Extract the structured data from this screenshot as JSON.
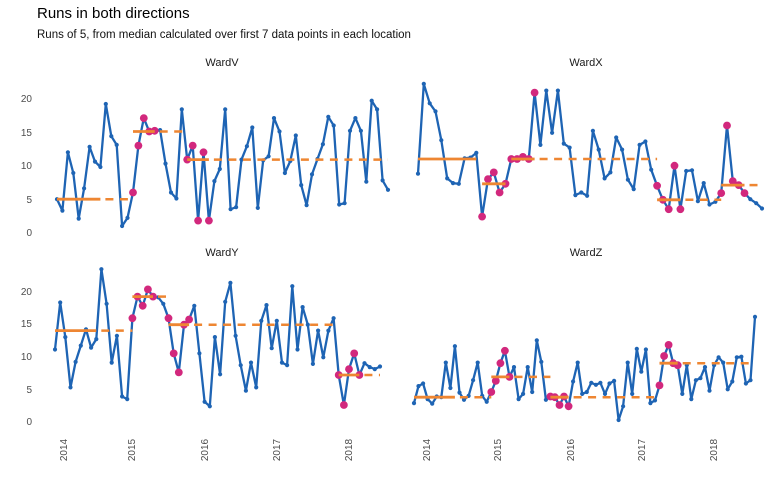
{
  "header": {
    "title": "Runs in both directions",
    "subtitle": "Runs of 5, from median calculated over first 7 data points in each location"
  },
  "colors": {
    "line": "#1e64b4",
    "point": "#1e64b4",
    "run_point": "#d2287d",
    "median_line": "#ee8632",
    "axis_text": "#4d4d4d",
    "strip_text": "#1a1a1a",
    "background": "#ffffff"
  },
  "chart_data": {
    "type": "line",
    "title": "Runs in both directions",
    "subtitle": "Runs of 5, from median calculated over first 7 data points in each location",
    "x_ticks": [
      "2014",
      "2015",
      "2016",
      "2017",
      "2018"
    ],
    "y_ticks": [
      0,
      5,
      10,
      15,
      20
    ],
    "ylim": [
      0,
      23.5
    ],
    "grid": false,
    "legend_position": "none",
    "facets": [
      {
        "name": "WardV",
        "values": [
          5.2,
          3.5,
          12.2,
          9.1,
          2.3,
          6.8,
          13.0,
          10.8,
          10.0,
          19.4,
          14.6,
          13.3,
          1.2,
          2.4,
          6.2,
          13.2,
          17.3,
          15.3,
          15.4,
          15.5,
          10.5,
          6.2,
          5.3,
          18.6,
          11.1,
          13.2,
          2.0,
          12.2,
          2.0,
          7.9,
          9.7,
          18.6,
          3.7,
          4.0,
          11.1,
          13.1,
          15.9,
          3.9,
          11.0,
          11.6,
          17.3,
          15.3,
          9.1,
          10.9,
          14.7,
          7.3,
          4.3,
          8.9,
          11.2,
          13.4,
          17.5,
          16.2,
          4.4,
          4.6,
          15.4,
          17.3,
          15.4,
          7.8,
          19.9,
          18.6,
          8.0,
          6.6
        ],
        "runs": [
          [
            14,
            18
          ],
          [
            24,
            28
          ]
        ],
        "medians": [
          {
            "value": 5.2,
            "solid": [
              0,
              8
            ],
            "dash": [
              8,
              14
            ]
          },
          {
            "value": 15.3,
            "solid": [
              14,
              18
            ],
            "dash": [
              18,
              24
            ]
          },
          {
            "value": 11.1,
            "solid": [
              24,
              28
            ],
            "dash": [
              28,
              61
            ]
          }
        ]
      },
      {
        "name": "WardX",
        "values": [
          9.0,
          22.4,
          19.5,
          18.3,
          14.0,
          8.3,
          7.6,
          7.5,
          11.3,
          11.4,
          12.1,
          2.6,
          8.2,
          9.2,
          6.2,
          7.5,
          11.2,
          11.2,
          11.5,
          11.2,
          21.1,
          13.3,
          21.4,
          15.1,
          21.4,
          13.5,
          12.9,
          5.8,
          6.2,
          5.7,
          15.4,
          12.6,
          8.3,
          9.2,
          14.4,
          12.6,
          8.1,
          6.7,
          13.3,
          13.8,
          9.6,
          7.2,
          5.1,
          3.7,
          10.2,
          3.7,
          9.4,
          9.5,
          4.9,
          7.6,
          4.4,
          4.8,
          6.1,
          16.2,
          7.9,
          7.3,
          6.1,
          5.2,
          4.6,
          3.8
        ],
        "runs": [
          [
            11,
            15
          ],
          [
            16,
            20
          ],
          [
            41,
            45
          ],
          [
            52,
            56
          ]
        ],
        "medians": [
          {
            "value": 11.2,
            "solid": [
              0,
              10
            ],
            "dash": null
          },
          {
            "value": 7.5,
            "solid": [
              11,
              15
            ],
            "dash": null
          },
          {
            "value": 11.2,
            "solid": [
              16,
              20
            ],
            "dash": [
              20,
              41
            ]
          },
          {
            "value": 5.1,
            "solid": [
              41,
              45
            ],
            "dash": [
              45,
              52
            ]
          },
          {
            "value": 7.3,
            "solid": [
              52,
              56
            ],
            "dash": [
              56,
              59
            ]
          }
        ]
      },
      {
        "name": "WardY",
        "values": [
          11.3,
          18.5,
          13.2,
          5.5,
          9.4,
          11.9,
          14.4,
          11.6,
          12.9,
          23.6,
          18.3,
          9.3,
          13.4,
          4.1,
          3.7,
          16.1,
          19.4,
          18.0,
          20.5,
          19.4,
          19.3,
          18.3,
          16.1,
          10.7,
          7.8,
          15.1,
          15.9,
          18.0,
          10.7,
          3.3,
          2.6,
          13.2,
          7.5,
          18.6,
          21.5,
          13.4,
          8.9,
          5.0,
          9.3,
          5.5,
          15.7,
          18.1,
          11.5,
          15.7,
          9.3,
          8.9,
          21.0,
          11.3,
          17.8,
          15.1,
          9.1,
          14.2,
          10.1,
          14.2,
          16.1,
          7.4,
          2.8,
          8.3,
          10.7,
          7.4,
          9.2,
          8.6,
          8.3,
          8.7
        ],
        "runs": [
          [
            15,
            19
          ],
          [
            22,
            26
          ],
          [
            55,
            59
          ]
        ],
        "medians": [
          {
            "value": 14.2,
            "solid": [
              0,
              8
            ],
            "dash": [
              8,
              15
            ]
          },
          {
            "value": 19.4,
            "solid": [
              15,
              19
            ],
            "dash": [
              19,
              22
            ]
          },
          {
            "value": 15.1,
            "solid": [
              22,
              26
            ],
            "dash": [
              26,
              54
            ]
          },
          {
            "value": 7.4,
            "solid": [
              55,
              59
            ],
            "dash": [
              59,
              63
            ]
          }
        ]
      },
      {
        "name": "WardZ",
        "values": [
          3.1,
          5.7,
          6.1,
          3.7,
          3.0,
          4.1,
          4.0,
          9.3,
          5.4,
          11.8,
          4.7,
          3.6,
          4.2,
          6.6,
          9.3,
          4.2,
          3.3,
          4.8,
          6.5,
          9.2,
          11.1,
          7.1,
          8.6,
          3.7,
          4.5,
          8.6,
          4.8,
          12.7,
          9.4,
          3.6,
          4.1,
          4.0,
          2.8,
          4.1,
          2.6,
          6.4,
          9.3,
          4.5,
          4.8,
          6.2,
          5.9,
          6.2,
          4.5,
          6.1,
          6.5,
          0.5,
          2.6,
          9.3,
          4.5,
          11.4,
          7.9,
          11.3,
          3.1,
          3.5,
          5.8,
          10.3,
          12.0,
          9.2,
          8.9,
          4.5,
          8.9,
          3.7,
          6.6,
          6.9,
          8.6,
          5.0,
          8.9,
          10.1,
          9.3,
          5.2,
          6.4,
          10.1,
          10.2,
          6.1,
          6.6,
          16.3
        ],
        "runs": [
          [
            17,
            21
          ],
          [
            30,
            34
          ],
          [
            54,
            58
          ]
        ],
        "medians": [
          {
            "value": 4.0,
            "solid": [
              0,
              9
            ],
            "dash": [
              9,
              17
            ]
          },
          {
            "value": 7.1,
            "solid": [
              17,
              21
            ],
            "dash": [
              21,
              30
            ]
          },
          {
            "value": 4.0,
            "solid": [
              30,
              34
            ],
            "dash": [
              34,
              54
            ]
          },
          {
            "value": 9.2,
            "solid": [
              54,
              58
            ],
            "dash": [
              58,
              75
            ]
          }
        ]
      }
    ]
  }
}
